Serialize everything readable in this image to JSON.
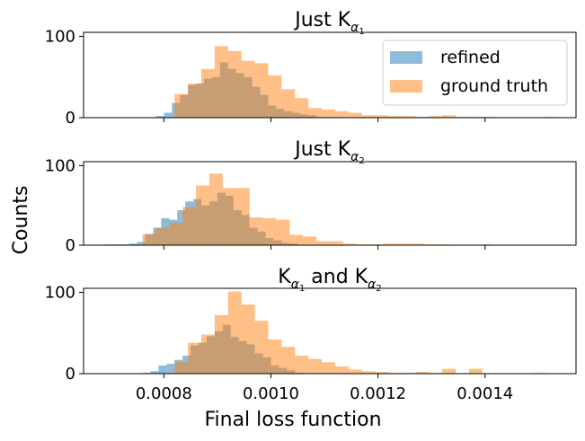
{
  "figure": {
    "ylabel": "Counts",
    "xlabel": "Final loss function"
  },
  "legend": {
    "placement": "top-right of first panel",
    "entries": [
      {
        "label": "refined",
        "color": "#1f77b4"
      },
      {
        "label": "ground truth",
        "color": "#ff7f0e"
      }
    ]
  },
  "colors": {
    "refined": "#1f77b4",
    "ground_truth": "#ff7f0e",
    "overlap": "#b8875f"
  },
  "chart_data": [
    {
      "type": "histogram",
      "title_prefix": "Just K",
      "title_sub": "α",
      "title_subsub": "1",
      "x_range": [
        0.00065,
        0.00157
      ],
      "ylim": [
        0,
        105
      ],
      "y_ticks": [
        0,
        100
      ],
      "x_ticks": [
        0.0008,
        0.001,
        0.0012,
        0.0014
      ],
      "series": [
        {
          "name": "refined",
          "bins": [
            [
              0.000785,
              0.0008,
              2
            ],
            [
              0.0008,
              0.000815,
              6
            ],
            [
              0.000815,
              0.00083,
              18
            ],
            [
              0.00083,
              0.000845,
              28
            ],
            [
              0.000845,
              0.00086,
              40
            ],
            [
              0.00086,
              0.000875,
              42
            ],
            [
              0.000875,
              0.00089,
              48
            ],
            [
              0.00089,
              0.000905,
              50
            ],
            [
              0.000905,
              0.00092,
              68
            ],
            [
              0.00092,
              0.000935,
              60
            ],
            [
              0.000935,
              0.00095,
              55
            ],
            [
              0.00095,
              0.000965,
              50
            ],
            [
              0.000965,
              0.00098,
              38
            ],
            [
              0.00098,
              0.000995,
              28
            ],
            [
              0.000995,
              0.00101,
              15
            ],
            [
              0.00101,
              0.001025,
              11
            ],
            [
              0.001025,
              0.00104,
              8
            ],
            [
              0.00104,
              0.001055,
              6
            ],
            [
              0.001055,
              0.00107,
              4
            ],
            [
              0.00107,
              0.001085,
              3
            ]
          ]
        },
        {
          "name": "ground truth",
          "bins": [
            [
              0.00082,
              0.000845,
              29
            ],
            [
              0.000845,
              0.00087,
              42
            ],
            [
              0.00087,
              0.000895,
              60
            ],
            [
              0.000895,
              0.00092,
              88
            ],
            [
              0.00092,
              0.000945,
              82
            ],
            [
              0.000945,
              0.00097,
              70
            ],
            [
              0.00097,
              0.000995,
              67
            ],
            [
              0.000995,
              0.00102,
              52
            ],
            [
              0.00102,
              0.001045,
              35
            ],
            [
              0.001045,
              0.00107,
              24
            ],
            [
              0.00107,
              0.001095,
              12
            ],
            [
              0.001095,
              0.00112,
              10
            ],
            [
              0.00112,
              0.001145,
              8
            ],
            [
              0.001145,
              0.00117,
              6
            ],
            [
              0.00117,
              0.001195,
              3
            ],
            [
              0.001195,
              0.00122,
              3
            ],
            [
              0.00122,
              0.001245,
              2
            ],
            [
              0.001245,
              0.00127,
              2
            ],
            [
              0.00127,
              0.001295,
              1
            ],
            [
              0.001295,
              0.00132,
              2
            ],
            [
              0.00132,
              0.001345,
              3
            ],
            [
              0.001345,
              0.00137,
              1
            ],
            [
              0.00137,
              0.001395,
              1
            ],
            [
              0.001395,
              0.00142,
              1
            ],
            [
              0.00151,
              0.001535,
              1
            ]
          ]
        }
      ]
    },
    {
      "type": "histogram",
      "title_prefix": "Just K",
      "title_sub": "α",
      "title_subsub": "2",
      "x_range": [
        0.00065,
        0.00157
      ],
      "ylim": [
        0,
        105
      ],
      "y_ticks": [
        0,
        100
      ],
      "x_ticks": [
        0.0008,
        0.001,
        0.0012,
        0.0014
      ],
      "series": [
        {
          "name": "refined",
          "bins": [
            [
              0.00069,
              0.000705,
              1
            ],
            [
              0.000705,
              0.00072,
              1
            ],
            [
              0.00072,
              0.000735,
              1
            ],
            [
              0.000735,
              0.00075,
              2
            ],
            [
              0.00075,
              0.000765,
              4
            ],
            [
              0.000765,
              0.00078,
              14
            ],
            [
              0.00078,
              0.000795,
              22
            ],
            [
              0.000795,
              0.00081,
              34
            ],
            [
              0.00081,
              0.000825,
              32
            ],
            [
              0.000825,
              0.00084,
              44
            ],
            [
              0.00084,
              0.000855,
              55
            ],
            [
              0.000855,
              0.00087,
              58
            ],
            [
              0.00087,
              0.000885,
              50
            ],
            [
              0.000885,
              0.0009,
              55
            ],
            [
              0.0009,
              0.000915,
              66
            ],
            [
              0.000915,
              0.00093,
              62
            ],
            [
              0.00093,
              0.000945,
              44
            ],
            [
              0.000945,
              0.00096,
              38
            ],
            [
              0.00096,
              0.000975,
              22
            ],
            [
              0.000975,
              0.00099,
              17
            ],
            [
              0.00099,
              0.001005,
              9
            ],
            [
              0.001005,
              0.00102,
              6
            ],
            [
              0.00102,
              0.001035,
              3
            ],
            [
              0.001035,
              0.00105,
              2
            ]
          ]
        },
        {
          "name": "ground truth",
          "bins": [
            [
              0.00076,
              0.000785,
              14
            ],
            [
              0.000785,
              0.00081,
              22
            ],
            [
              0.00081,
              0.000835,
              28
            ],
            [
              0.000835,
              0.00086,
              48
            ],
            [
              0.00086,
              0.000885,
              75
            ],
            [
              0.000885,
              0.00091,
              90
            ],
            [
              0.00091,
              0.000935,
              72
            ],
            [
              0.000935,
              0.00096,
              72
            ],
            [
              0.00096,
              0.000985,
              35
            ],
            [
              0.000985,
              0.00101,
              34
            ],
            [
              0.00101,
              0.001035,
              32
            ],
            [
              0.001035,
              0.00106,
              13
            ],
            [
              0.00106,
              0.001085,
              11
            ],
            [
              0.001085,
              0.00111,
              5
            ],
            [
              0.00111,
              0.001135,
              5
            ],
            [
              0.001135,
              0.00116,
              2
            ],
            [
              0.00116,
              0.001185,
              1
            ],
            [
              0.001185,
              0.00121,
              1
            ],
            [
              0.00121,
              0.001235,
              2
            ],
            [
              0.001235,
              0.00126,
              2
            ],
            [
              0.00126,
              0.001285,
              2
            ],
            [
              0.001285,
              0.00131,
              1
            ],
            [
              0.00131,
              0.001335,
              1
            ],
            [
              0.00139,
              0.001415,
              1
            ]
          ]
        }
      ]
    },
    {
      "type": "histogram",
      "title_prefix": "K",
      "title_sub": "α",
      "title_subsub": "1",
      "title_mid": " and K",
      "title_sub2": "α",
      "title_subsub2": "2",
      "x_range": [
        0.00065,
        0.00157
      ],
      "ylim": [
        0,
        105
      ],
      "y_ticks": [
        0,
        100
      ],
      "x_ticks": [
        0.0008,
        0.001,
        0.0012,
        0.0014
      ],
      "series": [
        {
          "name": "refined",
          "bins": [
            [
              0.00076,
              0.000775,
              1
            ],
            [
              0.000775,
              0.00079,
              3
            ],
            [
              0.00079,
              0.000805,
              10
            ],
            [
              0.000805,
              0.00082,
              12
            ],
            [
              0.00082,
              0.000835,
              17
            ],
            [
              0.000835,
              0.00085,
              22
            ],
            [
              0.00085,
              0.000865,
              35
            ],
            [
              0.000865,
              0.00088,
              38
            ],
            [
              0.00088,
              0.000895,
              46
            ],
            [
              0.000895,
              0.00091,
              52
            ],
            [
              0.00091,
              0.000925,
              60
            ],
            [
              0.000925,
              0.00094,
              45
            ],
            [
              0.00094,
              0.000955,
              40
            ],
            [
              0.000955,
              0.00097,
              36
            ],
            [
              0.00097,
              0.000985,
              25
            ],
            [
              0.000985,
              0.001,
              20
            ],
            [
              0.001,
              0.001015,
              10
            ],
            [
              0.001015,
              0.00103,
              7
            ],
            [
              0.00103,
              0.001045,
              4
            ],
            [
              0.001045,
              0.00106,
              1
            ]
          ]
        },
        {
          "name": "ground truth",
          "bins": [
            [
              0.00082,
              0.000845,
              14
            ],
            [
              0.000845,
              0.00087,
              38
            ],
            [
              0.00087,
              0.000895,
              48
            ],
            [
              0.000895,
              0.00092,
              72
            ],
            [
              0.00092,
              0.000945,
              101
            ],
            [
              0.000945,
              0.00097,
              85
            ],
            [
              0.00097,
              0.000995,
              65
            ],
            [
              0.000995,
              0.00102,
              42
            ],
            [
              0.00102,
              0.001045,
              33
            ],
            [
              0.001045,
              0.00107,
              22
            ],
            [
              0.00107,
              0.001095,
              18
            ],
            [
              0.001095,
              0.00112,
              14
            ],
            [
              0.00112,
              0.001145,
              9
            ],
            [
              0.001145,
              0.00117,
              5
            ],
            [
              0.00117,
              0.001195,
              3
            ],
            [
              0.001195,
              0.00122,
              2
            ],
            [
              0.00122,
              0.001245,
              1
            ],
            [
              0.001245,
              0.00127,
              1
            ],
            [
              0.00127,
              0.001295,
              2
            ],
            [
              0.001295,
              0.00132,
              1
            ],
            [
              0.00132,
              0.001345,
              6
            ],
            [
              0.00137,
              0.001395,
              6
            ],
            [
              0.00149,
              0.001515,
              1
            ]
          ]
        }
      ]
    }
  ]
}
